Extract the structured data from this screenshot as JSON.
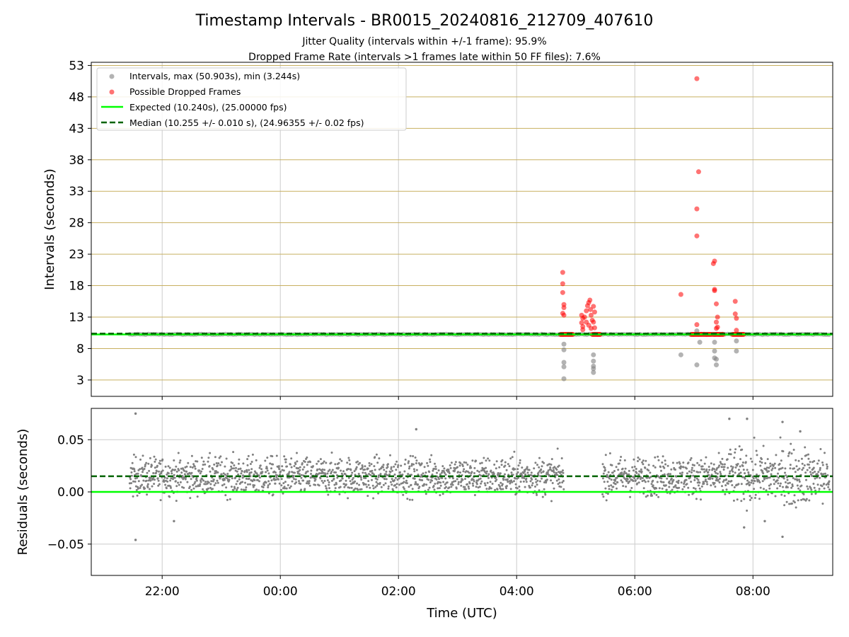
{
  "chart_data": [
    {
      "type": "scatter",
      "title": "Timestamp Intervals - BR0015_20240816_212709_407610",
      "subtitle_lines": [
        "Jitter Quality (intervals within +/-1 frame): 95.9%",
        "Dropped Frame Rate (intervals >1 frames late within 50 FF files): 7.6%"
      ],
      "ylabel": "Intervals (seconds)",
      "xlim_hours": [
        -3.2,
        9.35
      ],
      "ylim": [
        0.4,
        53.5
      ],
      "yticks": [
        3,
        8,
        13,
        18,
        23,
        28,
        33,
        38,
        43,
        48,
        53
      ],
      "ytick_labels": [
        "3",
        "8",
        "13",
        "18",
        "23",
        "28",
        "33",
        "38",
        "43",
        "48",
        "53"
      ],
      "grid": true,
      "legend_position": "top-left",
      "legend": [
        "Intervals, max (50.903s), min (3.244s)",
        "Possible Dropped Frames",
        "Expected (10.240s), (25.00000 fps)",
        "Median (10.255 +/- 0.010 s), (24.96355 +/- 0.02 fps)"
      ],
      "expected_interval": 10.24,
      "median_interval": 10.255,
      "interval_max": 50.903,
      "interval_min": 3.244,
      "colors": {
        "intervals": "#808080",
        "dropped": "#ff0000",
        "expected": "#00ff00",
        "median": "#006400",
        "hgrid": "#c8b060",
        "vgrid": "#cccccc"
      },
      "series": [
        {
          "name": "Intervals, max (50.903s), min (3.244s)",
          "x_range_hours": [
            -2.55,
            9.3
          ],
          "baseline": 10.25,
          "outliers": [
            [
              4.8,
              8.7
            ],
            [
              4.8,
              7.8
            ],
            [
              4.8,
              5.8
            ],
            [
              4.8,
              5.1
            ],
            [
              4.8,
              3.2
            ],
            [
              5.3,
              7.0
            ],
            [
              5.3,
              6.0
            ],
            [
              5.3,
              5.2
            ],
            [
              5.3,
              4.8
            ],
            [
              5.3,
              4.2
            ],
            [
              6.78,
              7.0
            ],
            [
              7.05,
              10.8
            ],
            [
              7.1,
              9.0
            ],
            [
              7.05,
              5.4
            ],
            [
              7.35,
              9.0
            ],
            [
              7.35,
              7.6
            ],
            [
              7.35,
              6.5
            ],
            [
              7.38,
              6.3
            ],
            [
              7.38,
              5.4
            ],
            [
              7.72,
              7.6
            ],
            [
              7.72,
              9.2
            ]
          ]
        },
        {
          "name": "Possible Dropped Frames",
          "points": [
            [
              4.78,
              20.1
            ],
            [
              4.78,
              18.3
            ],
            [
              4.78,
              16.9
            ],
            [
              4.8,
              15.0
            ],
            [
              4.8,
              14.5
            ],
            [
              4.78,
              13.6
            ],
            [
              4.8,
              13.3
            ],
            [
              5.1,
              13.3
            ],
            [
              5.12,
              12.8
            ],
            [
              5.1,
              12.1
            ],
            [
              5.12,
              11.5
            ],
            [
              5.12,
              11.0
            ],
            [
              5.15,
              13.0
            ],
            [
              5.18,
              14.0
            ],
            [
              5.2,
              14.8
            ],
            [
              5.22,
              15.3
            ],
            [
              5.24,
              15.7
            ],
            [
              5.25,
              14.2
            ],
            [
              5.26,
              13.3
            ],
            [
              5.28,
              12.5
            ],
            [
              5.3,
              14.7
            ],
            [
              5.32,
              13.8
            ],
            [
              5.3,
              12.2
            ],
            [
              5.32,
              11.3
            ],
            [
              5.18,
              12.2
            ],
            [
              5.22,
              11.7
            ],
            [
              5.26,
              11.2
            ],
            [
              6.78,
              16.6
            ],
            [
              7.05,
              50.9
            ],
            [
              7.08,
              36.1
            ],
            [
              7.05,
              30.2
            ],
            [
              7.05,
              25.9
            ],
            [
              7.05,
              11.8
            ],
            [
              7.33,
              21.5
            ],
            [
              7.35,
              21.9
            ],
            [
              7.35,
              17.4
            ],
            [
              7.35,
              17.2
            ],
            [
              7.38,
              15.1
            ],
            [
              7.4,
              13.0
            ],
            [
              7.38,
              12.2
            ],
            [
              7.4,
              11.4
            ],
            [
              7.38,
              11.2
            ],
            [
              7.7,
              15.5
            ],
            [
              7.7,
              13.5
            ],
            [
              7.72,
              12.8
            ],
            [
              7.72,
              10.9
            ]
          ]
        },
        {
          "name": "Expected (10.240s), (25.00000 fps)",
          "y": 10.24
        },
        {
          "name": "Median (10.255 +/- 0.010 s), (24.96355 +/- 0.02 fps)",
          "y": 10.255
        }
      ]
    },
    {
      "type": "scatter",
      "xlabel": "Time (UTC)",
      "ylabel": "Residuals (seconds)",
      "xlim_hours": [
        -3.2,
        9.35
      ],
      "ylim": [
        -0.08,
        0.08
      ],
      "yticks": [
        -0.05,
        0.0,
        0.05
      ],
      "ytick_labels": [
        "−0.05",
        "0.00",
        "0.05"
      ],
      "xticks_hours": [
        -2,
        0,
        2,
        4,
        6,
        8
      ],
      "xtick_labels": [
        "22:00",
        "00:00",
        "02:00",
        "04:00",
        "06:00",
        "08:00"
      ],
      "grid": true,
      "expected_residual": 0.0,
      "median_residual": 0.015,
      "series": [
        {
          "name": "Residuals",
          "x_range_hours": [
            -2.55,
            9.3
          ],
          "gap_hours": [
            4.8,
            5.45
          ],
          "center": 0.015,
          "spread": 0.009,
          "outliers": [
            [
              -2.45,
              0.075
            ],
            [
              -2.45,
              -0.046
            ],
            [
              -1.8,
              -0.028
            ],
            [
              2.3,
              0.06
            ],
            [
              7.6,
              0.07
            ],
            [
              7.9,
              0.07
            ],
            [
              8.5,
              0.067
            ],
            [
              8.8,
              0.058
            ],
            [
              7.85,
              -0.034
            ],
            [
              8.5,
              -0.043
            ],
            [
              8.2,
              -0.028
            ]
          ]
        }
      ]
    }
  ]
}
